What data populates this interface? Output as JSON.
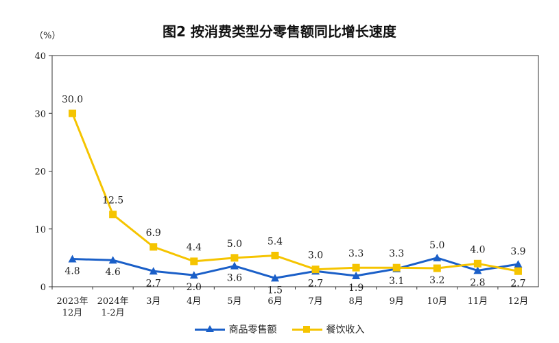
{
  "title": "图2 按消费类型分零售额同比增长速度",
  "unit": "（%）",
  "chart_data": {
    "type": "line",
    "categories": [
      [
        "2023年",
        "12月"
      ],
      [
        "2024年",
        "1-2月"
      ],
      [
        "3月"
      ],
      [
        "4月"
      ],
      [
        "5月"
      ],
      [
        "6月"
      ],
      [
        "7月"
      ],
      [
        "8月"
      ],
      [
        "9月"
      ],
      [
        "10月"
      ],
      [
        "11月"
      ],
      [
        "12月"
      ]
    ],
    "ylim": [
      0,
      40
    ],
    "yticks": [
      0,
      10,
      20,
      30,
      40
    ],
    "series": [
      {
        "name": "商品零售额",
        "color": "#1a5fc8",
        "marker": "triangle",
        "values": [
          4.8,
          4.6,
          2.7,
          2.0,
          3.6,
          1.5,
          2.7,
          1.9,
          3.1,
          5.0,
          2.8,
          3.9
        ]
      },
      {
        "name": "餐饮收入",
        "color": "#f5c400",
        "marker": "square",
        "values": [
          30.0,
          12.5,
          6.9,
          4.4,
          5.0,
          5.4,
          3.0,
          3.3,
          3.3,
          3.2,
          4.0,
          2.7
        ]
      }
    ],
    "labels": {
      "商品零售额": [
        "4.8",
        "4.6",
        "2.7",
        "2.0",
        "3.6",
        "1.5",
        "2.7",
        "1.9",
        "3.1",
        "5.0",
        "2.8",
        "3.9"
      ],
      "餐饮收入": [
        "30.0",
        "12.5",
        "6.9",
        "4.4",
        "5.0",
        "5.4",
        "3.0",
        "3.3",
        "3.3",
        "3.2",
        "4.0",
        "2.7"
      ]
    },
    "grid": false,
    "legend": "bottom"
  }
}
